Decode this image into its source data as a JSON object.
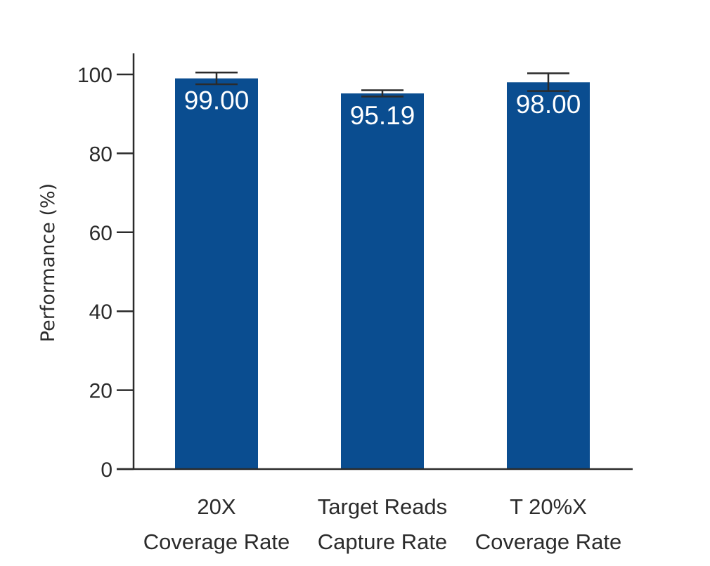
{
  "chart_data": {
    "type": "bar",
    "categories": [
      [
        "20X",
        "Coverage Rate"
      ],
      [
        "Target Reads",
        "Capture Rate"
      ],
      [
        "T 20%X",
        "Coverage Rate"
      ]
    ],
    "values": [
      99.0,
      95.19,
      98.0
    ],
    "value_labels": [
      "99.00",
      "95.19",
      "98.00"
    ],
    "error_high": [
      100.5,
      96.0,
      100.3
    ],
    "error_low": [
      97.5,
      94.4,
      95.8
    ],
    "ylabel": "Performance (%)",
    "xlabel": "",
    "ylim": [
      0,
      105
    ],
    "yticks": [
      0,
      20,
      40,
      60,
      80,
      100
    ],
    "grid": false,
    "colors": {
      "bar": "#0a4d90",
      "axis": "#2b2b2b",
      "data_label": "#ffffff"
    }
  }
}
